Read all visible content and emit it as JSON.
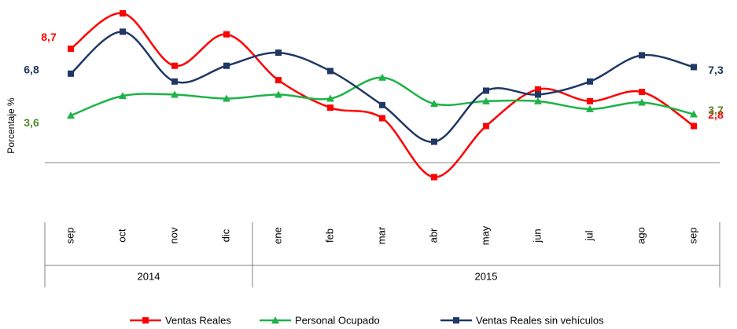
{
  "chart_data": {
    "type": "line",
    "y_label": "Porcentaje %",
    "categories": [
      "sep",
      "oct",
      "nov",
      "dic",
      "ene",
      "feb",
      "mar",
      "abr",
      "may",
      "jun",
      "jul",
      "ago",
      "sep"
    ],
    "groups": [
      {
        "label": "2014",
        "count": 4
      },
      {
        "label": "2015",
        "count": 9
      }
    ],
    "ylim": [
      -4,
      12
    ],
    "series": [
      {
        "name": "Ventas Reales",
        "color": "#ff0000",
        "label_color": "#ff0000",
        "marker": "square",
        "values": [
          8.7,
          11.4,
          7.4,
          9.8,
          6.3,
          4.2,
          3.4,
          -1.1,
          2.8,
          5.6,
          4.7,
          5.4,
          2.8
        ],
        "value_labels": [
          "8,7",
          null,
          null,
          null,
          null,
          null,
          null,
          null,
          null,
          null,
          null,
          null,
          "2,8"
        ]
      },
      {
        "name": "Personal Ocupado",
        "color": "#1db347",
        "label_color": "#4f8a2b",
        "marker": "triangle",
        "values": [
          3.6,
          5.1,
          5.2,
          4.9,
          5.2,
          4.9,
          6.5,
          4.5,
          4.7,
          4.7,
          4.1,
          4.6,
          3.7
        ],
        "value_labels": [
          "3,6",
          null,
          null,
          null,
          null,
          null,
          null,
          null,
          null,
          null,
          null,
          null,
          "3,7"
        ]
      },
      {
        "name": "Ventas Reales sin vehículos",
        "color": "#1f3864",
        "label_color": "#1f3864",
        "marker": "square",
        "values": [
          6.8,
          10.0,
          6.2,
          7.4,
          8.4,
          7.0,
          4.4,
          1.6,
          5.5,
          5.2,
          6.2,
          8.2,
          7.3
        ],
        "value_labels": [
          "6,8",
          null,
          null,
          null,
          null,
          null,
          null,
          null,
          null,
          null,
          null,
          null,
          "7,3"
        ]
      }
    ]
  }
}
